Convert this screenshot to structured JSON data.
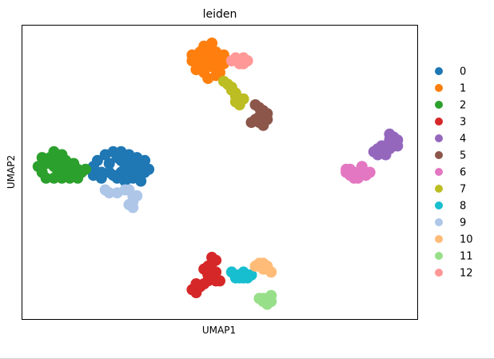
{
  "chart_data": {
    "type": "scatter",
    "title": "leiden",
    "xlabel": "UMAP1",
    "ylabel": "UMAP2",
    "xlim": [
      0,
      100
    ],
    "ylim": [
      0,
      100
    ],
    "grid": false,
    "ticks": "none",
    "legend_position": "right",
    "series": [
      {
        "name": "0",
        "color": "#1f77b4",
        "points": [
          [
            18,
            52
          ],
          [
            20,
            50
          ],
          [
            22,
            53
          ],
          [
            24,
            55
          ],
          [
            25,
            50
          ],
          [
            26,
            52
          ],
          [
            27,
            54
          ],
          [
            28,
            51
          ],
          [
            29,
            49
          ],
          [
            30,
            52
          ],
          [
            22,
            50
          ],
          [
            24,
            48
          ],
          [
            26,
            47
          ],
          [
            28,
            48
          ],
          [
            30,
            47
          ],
          [
            31,
            50
          ],
          [
            19,
            54
          ],
          [
            21,
            56
          ],
          [
            23,
            57
          ],
          [
            25,
            57
          ],
          [
            27,
            56
          ],
          [
            29,
            55
          ],
          [
            31,
            54
          ],
          [
            32,
            51
          ],
          [
            18,
            49
          ],
          [
            20,
            48
          ],
          [
            23,
            49
          ],
          [
            25,
            54
          ],
          [
            27,
            49
          ],
          [
            29,
            52
          ]
        ]
      },
      {
        "name": "1",
        "color": "#ff7f0e",
        "points": [
          [
            43,
            90
          ],
          [
            45,
            91
          ],
          [
            47,
            92
          ],
          [
            49,
            91
          ],
          [
            50,
            89
          ],
          [
            48,
            88
          ],
          [
            46,
            87
          ],
          [
            44,
            87
          ],
          [
            48,
            86
          ],
          [
            46,
            84
          ],
          [
            45,
            89
          ],
          [
            47,
            89
          ],
          [
            49,
            87
          ],
          [
            51,
            87
          ],
          [
            50,
            84
          ],
          [
            47,
            82
          ],
          [
            43,
            88
          ],
          [
            46,
            93
          ],
          [
            48,
            94
          ],
          [
            51,
            90
          ],
          [
            44,
            85
          ],
          [
            49,
            83
          ]
        ]
      },
      {
        "name": "2",
        "color": "#2ca02c",
        "points": [
          [
            4,
            52
          ],
          [
            5,
            50
          ],
          [
            6,
            53
          ],
          [
            7,
            55
          ],
          [
            8,
            52
          ],
          [
            9,
            50
          ],
          [
            10,
            53
          ],
          [
            11,
            51
          ],
          [
            12,
            50
          ],
          [
            13,
            49
          ],
          [
            14,
            51
          ],
          [
            15,
            50
          ],
          [
            8,
            57
          ],
          [
            9,
            55
          ],
          [
            10,
            56
          ],
          [
            6,
            48
          ],
          [
            8,
            48
          ],
          [
            10,
            48
          ],
          [
            12,
            48
          ],
          [
            14,
            48
          ],
          [
            16,
            51
          ],
          [
            5,
            55
          ],
          [
            11,
            54
          ],
          [
            13,
            53
          ]
        ]
      },
      {
        "name": "3",
        "color": "#d62728",
        "points": [
          [
            43,
            10
          ],
          [
            44,
            9
          ],
          [
            45,
            11
          ],
          [
            46,
            12
          ],
          [
            47,
            13
          ],
          [
            48,
            14
          ],
          [
            49,
            13
          ],
          [
            47,
            15
          ],
          [
            46,
            17
          ],
          [
            47,
            18
          ],
          [
            48,
            19
          ],
          [
            49,
            20
          ],
          [
            48,
            21
          ],
          [
            44,
            12
          ],
          [
            50,
            13
          ],
          [
            49,
            16
          ]
        ]
      },
      {
        "name": "4",
        "color": "#9467bd",
        "points": [
          [
            89,
            57
          ],
          [
            90,
            56
          ],
          [
            91,
            57
          ],
          [
            92,
            58
          ],
          [
            93,
            58
          ],
          [
            94,
            59
          ],
          [
            93,
            61
          ],
          [
            94,
            62
          ],
          [
            95,
            61
          ],
          [
            93,
            63
          ],
          [
            91,
            59
          ],
          [
            92,
            56
          ],
          [
            90,
            58
          ],
          [
            95,
            59
          ]
        ]
      },
      {
        "name": "5",
        "color": "#8c564b",
        "points": [
          [
            59,
            73
          ],
          [
            60,
            72
          ],
          [
            61,
            71
          ],
          [
            62,
            70
          ],
          [
            61,
            69
          ],
          [
            60,
            67
          ],
          [
            61,
            66
          ],
          [
            62,
            68
          ],
          [
            60,
            69
          ],
          [
            59,
            68
          ],
          [
            58,
            67
          ]
        ]
      },
      {
        "name": "6",
        "color": "#e377c2",
        "points": [
          [
            82,
            50
          ],
          [
            83,
            51
          ],
          [
            84,
            50
          ],
          [
            85,
            49
          ],
          [
            86,
            50
          ],
          [
            85,
            48
          ],
          [
            84,
            48
          ],
          [
            83,
            49
          ],
          [
            82,
            51
          ],
          [
            86,
            52
          ],
          [
            87,
            49
          ],
          [
            88,
            50
          ]
        ]
      },
      {
        "name": "7",
        "color": "#bcbd22",
        "points": [
          [
            51,
            81
          ],
          [
            52,
            80
          ],
          [
            53,
            79
          ],
          [
            53,
            78
          ],
          [
            54,
            77
          ],
          [
            54,
            76
          ],
          [
            55,
            75
          ],
          [
            54,
            74
          ],
          [
            55,
            73
          ],
          [
            56,
            75
          ]
        ]
      },
      {
        "name": "8",
        "color": "#17becf",
        "points": [
          [
            53,
            16
          ],
          [
            54,
            15
          ],
          [
            55,
            15
          ],
          [
            56,
            14
          ],
          [
            57,
            15
          ],
          [
            56,
            16
          ],
          [
            55,
            14
          ],
          [
            54,
            14
          ],
          [
            57,
            14
          ],
          [
            58,
            15
          ]
        ]
      },
      {
        "name": "9",
        "color": "#aec7e8",
        "points": [
          [
            21,
            44
          ],
          [
            22,
            43
          ],
          [
            24,
            43
          ],
          [
            26,
            44
          ],
          [
            27,
            44
          ],
          [
            28,
            42
          ],
          [
            28,
            40
          ],
          [
            27,
            39
          ],
          [
            28,
            38
          ],
          [
            29,
            42
          ]
        ]
      },
      {
        "name": "10",
        "color": "#ffbb78",
        "points": [
          [
            59,
            18
          ],
          [
            60,
            19
          ],
          [
            61,
            19
          ],
          [
            62,
            18
          ],
          [
            62,
            17
          ],
          [
            63,
            16
          ],
          [
            61,
            17
          ],
          [
            60,
            18
          ]
        ]
      },
      {
        "name": "11",
        "color": "#98df8a",
        "points": [
          [
            61,
            7
          ],
          [
            62,
            7
          ],
          [
            63,
            6
          ],
          [
            62,
            5
          ],
          [
            61,
            6
          ],
          [
            63,
            8
          ],
          [
            60,
            7
          ]
        ]
      },
      {
        "name": "12",
        "color": "#ff9896",
        "points": [
          [
            53,
            88
          ],
          [
            54,
            89
          ],
          [
            55,
            88
          ],
          [
            56,
            89
          ],
          [
            57,
            88
          ],
          [
            55,
            87
          ],
          [
            56,
            87
          ]
        ]
      }
    ]
  }
}
